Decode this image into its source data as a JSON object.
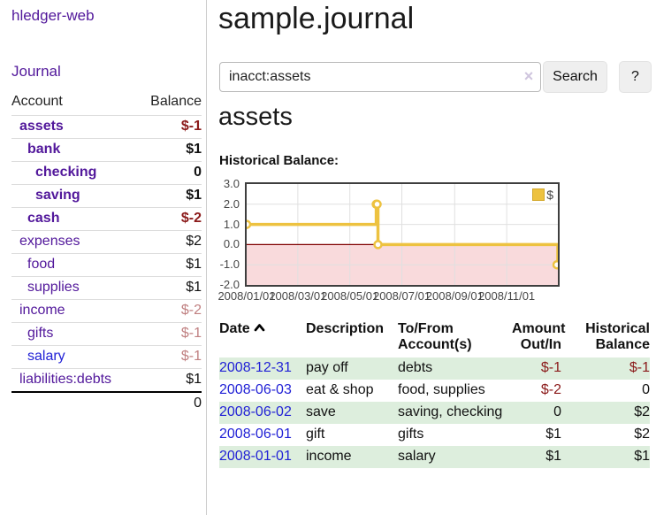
{
  "app": {
    "brand": "hledger-web",
    "nav_journal": "Journal"
  },
  "sidebar": {
    "headers": {
      "account": "Account",
      "balance": "Balance"
    },
    "accounts": [
      {
        "name": "assets",
        "indent": 0,
        "bold": true,
        "balance": "$-1",
        "balance_style": "neg"
      },
      {
        "name": "bank",
        "indent": 1,
        "bold": true,
        "balance": "$1",
        "balance_style": "pos"
      },
      {
        "name": "checking",
        "indent": 2,
        "bold": true,
        "balance": "0",
        "balance_style": "pos"
      },
      {
        "name": "saving",
        "indent": 2,
        "bold": true,
        "balance": "$1",
        "balance_style": "pos"
      },
      {
        "name": "cash",
        "indent": 1,
        "bold": true,
        "balance": "$-2",
        "balance_style": "neg"
      },
      {
        "name": "expenses",
        "indent": 0,
        "bold": false,
        "balance": "$2",
        "balance_style": "pos"
      },
      {
        "name": "food",
        "indent": 1,
        "bold": false,
        "balance": "$1",
        "balance_style": "pos"
      },
      {
        "name": "supplies",
        "indent": 1,
        "bold": false,
        "balance": "$1",
        "balance_style": "pos"
      },
      {
        "name": "income",
        "indent": 0,
        "bold": false,
        "balance": "$-2",
        "balance_style": "neg-light"
      },
      {
        "name": "gifts",
        "indent": 1,
        "bold": false,
        "balance": "$-1",
        "balance_style": "neg-light"
      },
      {
        "name": "salary",
        "indent": 1,
        "bold": false,
        "balance": "$-1",
        "balance_style": "neg-light",
        "link_color": "blue"
      },
      {
        "name": "liabilities:debts",
        "indent": 0,
        "bold": false,
        "balance": "$1",
        "balance_style": "pos"
      }
    ],
    "total": "0"
  },
  "header": {
    "title": "sample.journal"
  },
  "search": {
    "value": "inacct:assets",
    "clear_icon": "×",
    "button_label": "Search",
    "help_label": "?"
  },
  "account_page": {
    "heading": "assets",
    "chart_label": "Historical Balance:"
  },
  "chart_data": {
    "type": "line",
    "step": true,
    "series": [
      {
        "name": "$",
        "color": "#EDC240",
        "points": [
          [
            "2008-01-01",
            1
          ],
          [
            "2008-06-01",
            2
          ],
          [
            "2008-06-02",
            2
          ],
          [
            "2008-06-03",
            0
          ],
          [
            "2008-12-31",
            -1
          ]
        ]
      }
    ],
    "x_range": [
      "2008-01-01",
      "2008-12-31"
    ],
    "ylim": [
      -2.0,
      3.0
    ],
    "y_ticks": [
      "3.0",
      "2.0",
      "1.0",
      "0.0",
      "-1.0",
      "-2.0"
    ],
    "x_ticks": [
      "2008/01/01",
      "2008/03/01",
      "2008/05/01",
      "2008/07/01",
      "2008/09/01",
      "2008/11/01"
    ],
    "grid": true,
    "negative_region_color": "#F9DADC",
    "zero_line_color": "#800000",
    "gridline_color": "#E0E0E0",
    "legend": {
      "label": "$",
      "position": "top-right"
    }
  },
  "register": {
    "columns": [
      {
        "label": "Date",
        "sortable": true,
        "align": "left"
      },
      {
        "label": "Description",
        "align": "left"
      },
      {
        "label": "To/From Account(s)",
        "align": "left"
      },
      {
        "label": "Amount Out/In",
        "align": "right"
      },
      {
        "label": "Historical Balance",
        "align": "right"
      }
    ],
    "rows": [
      {
        "date": "2008-12-31",
        "description": "pay off",
        "accounts": "debts",
        "amount": "$-1",
        "amount_neg": true,
        "balance": "$-1",
        "balance_neg": true
      },
      {
        "date": "2008-06-03",
        "description": "eat & shop",
        "accounts": "food, supplies",
        "amount": "$-2",
        "amount_neg": true,
        "balance": "0",
        "balance_neg": false
      },
      {
        "date": "2008-06-02",
        "description": "save",
        "accounts": "saving, checking",
        "amount": "0",
        "amount_neg": false,
        "balance": "$2",
        "balance_neg": false
      },
      {
        "date": "2008-06-01",
        "description": "gift",
        "accounts": "gifts",
        "amount": "$1",
        "amount_neg": false,
        "balance": "$2",
        "balance_neg": false
      },
      {
        "date": "2008-01-01",
        "description": "income",
        "accounts": "salary",
        "amount": "$1",
        "amount_neg": false,
        "balance": "$1",
        "balance_neg": false
      }
    ]
  },
  "colors": {
    "purple": "#52189B",
    "blue": "#2222D6",
    "neg": "#8B1A1A",
    "neg-light": "#C08081",
    "row-green": "#DDEEDD",
    "gold": "#EDC240"
  }
}
